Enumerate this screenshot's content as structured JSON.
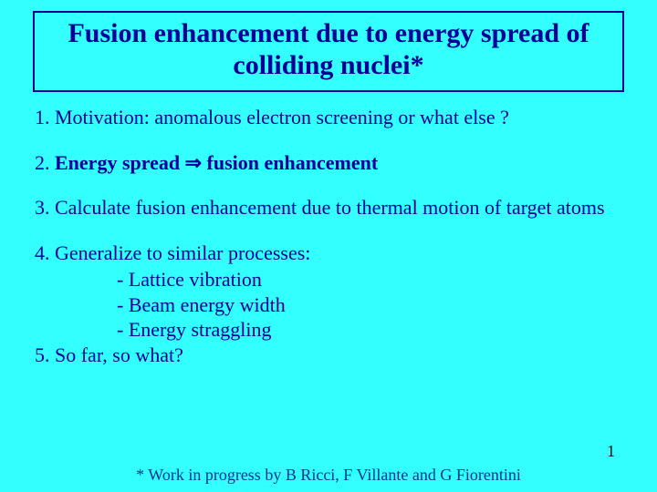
{
  "colors": {
    "background": "#33ffff",
    "title_text": "#000099",
    "title_border": "#000099",
    "body_text": "#000099",
    "emphasis_text": "#000099",
    "footnote_text": "#003399",
    "pagenum_text": "#000000"
  },
  "title": "Fusion enhancement due to energy spread of colliding nuclei*",
  "items": {
    "p1": "1. Motivation: anomalous electron  screening or what else ?",
    "p2_pre": "2. ",
    "p2_a": "Energy spread ",
    "p2_arrow": "⇒",
    "p2_b": " fusion enhancement",
    "p3": "3. Calculate fusion enhancement due to thermal motion of target atoms",
    "p4": "4. Generalize to similar processes:",
    "p4a": "- Lattice vibration",
    "p4b": "- Beam energy width",
    "p4c": "- Energy straggling",
    "p5": "5. So far, so  what?"
  },
  "footnote": "* Work in  progress by B Ricci, F Villante and G Fiorentini",
  "page_number": "1"
}
